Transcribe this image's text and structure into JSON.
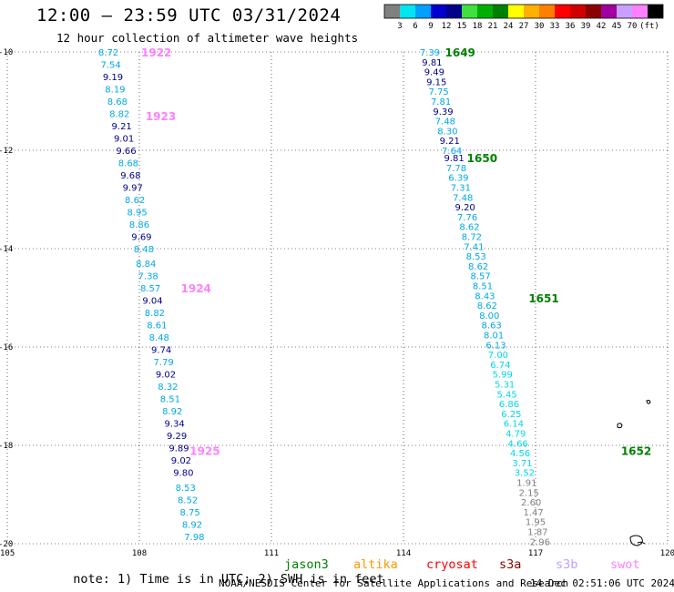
{
  "header": {
    "title": "12:00 — 23:59 UTC 03/31/2024",
    "subtitle": "12 hour collection of altimeter wave heights"
  },
  "colorbar": {
    "unit": "(ft)",
    "ticks": [
      "3",
      "6",
      "9",
      "12",
      "15",
      "18",
      "21",
      "24",
      "27",
      "30",
      "33",
      "36",
      "39",
      "42",
      "45",
      "70"
    ],
    "colors": [
      "#808080",
      "#00e5ee",
      "#00a0ff",
      "#0000d0",
      "#00008b",
      "#40e040",
      "#00b000",
      "#008000",
      "#ffff00",
      "#ffb000",
      "#ff8000",
      "#ff0000",
      "#d00000",
      "#8b0000",
      "#a000a0",
      "#c8a0ff",
      "#ff80ff",
      "#000000"
    ]
  },
  "footer": {
    "note_prefix": "note: 1) Time is in UTC; 2) SWH is in feet",
    "satellites": [
      {
        "name": "jason3",
        "color": "#008000"
      },
      {
        "name": "altika",
        "color": "#ff9900"
      },
      {
        "name": "cryosat",
        "color": "#ff0000"
      },
      {
        "name": "s3a",
        "color": "#8b0000"
      },
      {
        "name": "s3b",
        "color": "#c0a0ff"
      },
      {
        "name": "swot",
        "color": "#ff80ff"
      }
    ],
    "credit": "NOAA/NESDIS Center for Satellite Applications and Research",
    "timestamp": "14 Dec 02:51:06 UTC 2024"
  },
  "chart_data": {
    "type": "scatter",
    "xlim": [
      105,
      120
    ],
    "ylim": [
      -20,
      -10
    ],
    "x_ticks": [
      "105",
      "108",
      "111",
      "114",
      "117",
      "120"
    ],
    "y_ticks": [
      "-10",
      "-12",
      "-14",
      "-16",
      "-18",
      "-20"
    ],
    "grid": "dotted",
    "swh_colors": {
      "light_blue": "#00a8e8",
      "dark_blue": "#00008b",
      "cyan": "#00d8e8",
      "gray": "#808080"
    },
    "track_west": {
      "satellite": "swot",
      "color": "#ff80ff",
      "time_labels": [
        {
          "label": "1922",
          "lon": 108.0,
          "lat": -10.0
        },
        {
          "label": "1923",
          "lon": 108.1,
          "lat": -11.3
        },
        {
          "label": "1924",
          "lon": 108.9,
          "lat": -14.8
        },
        {
          "label": "1925",
          "lon": 109.1,
          "lat": -18.1
        }
      ],
      "points": [
        {
          "lon": 107.3,
          "lat": -10.0,
          "v": "8.72",
          "c": "light_blue"
        },
        {
          "lon": 107.35,
          "lat": -10.25,
          "v": "7.54",
          "c": "light_blue"
        },
        {
          "lon": 107.4,
          "lat": -10.5,
          "v": "9.19",
          "c": "dark_blue"
        },
        {
          "lon": 107.45,
          "lat": -10.75,
          "v": "8.19",
          "c": "light_blue"
        },
        {
          "lon": 107.5,
          "lat": -11.0,
          "v": "8.68",
          "c": "light_blue"
        },
        {
          "lon": 107.55,
          "lat": -11.25,
          "v": "8.82",
          "c": "light_blue"
        },
        {
          "lon": 107.6,
          "lat": -11.5,
          "v": "9.21",
          "c": "dark_blue"
        },
        {
          "lon": 107.65,
          "lat": -11.75,
          "v": "9.01",
          "c": "dark_blue"
        },
        {
          "lon": 107.7,
          "lat": -12.0,
          "v": "9.66",
          "c": "dark_blue"
        },
        {
          "lon": 107.75,
          "lat": -12.25,
          "v": "8.68",
          "c": "light_blue"
        },
        {
          "lon": 107.8,
          "lat": -12.5,
          "v": "9.68",
          "c": "dark_blue"
        },
        {
          "lon": 107.85,
          "lat": -12.75,
          "v": "9.97",
          "c": "dark_blue"
        },
        {
          "lon": 107.9,
          "lat": -13.0,
          "v": "8.62",
          "c": "light_blue"
        },
        {
          "lon": 107.95,
          "lat": -13.25,
          "v": "8.95",
          "c": "light_blue"
        },
        {
          "lon": 108.0,
          "lat": -13.5,
          "v": "8.86",
          "c": "light_blue"
        },
        {
          "lon": 108.05,
          "lat": -13.75,
          "v": "9.69",
          "c": "dark_blue"
        },
        {
          "lon": 108.1,
          "lat": -14.0,
          "v": "8.48",
          "c": "light_blue"
        },
        {
          "lon": 108.15,
          "lat": -14.3,
          "v": "8.84",
          "c": "light_blue"
        },
        {
          "lon": 108.2,
          "lat": -14.55,
          "v": "7.38",
          "c": "light_blue"
        },
        {
          "lon": 108.25,
          "lat": -14.8,
          "v": "8.57",
          "c": "light_blue"
        },
        {
          "lon": 108.3,
          "lat": -15.05,
          "v": "9.04",
          "c": "dark_blue"
        },
        {
          "lon": 108.35,
          "lat": -15.3,
          "v": "8.82",
          "c": "light_blue"
        },
        {
          "lon": 108.4,
          "lat": -15.55,
          "v": "8.61",
          "c": "light_blue"
        },
        {
          "lon": 108.45,
          "lat": -15.8,
          "v": "8.48",
          "c": "light_blue"
        },
        {
          "lon": 108.5,
          "lat": -16.05,
          "v": "9.74",
          "c": "dark_blue"
        },
        {
          "lon": 108.55,
          "lat": -16.3,
          "v": "7.79",
          "c": "light_blue"
        },
        {
          "lon": 108.6,
          "lat": -16.55,
          "v": "9.02",
          "c": "dark_blue"
        },
        {
          "lon": 108.65,
          "lat": -16.8,
          "v": "8.32",
          "c": "light_blue"
        },
        {
          "lon": 108.7,
          "lat": -17.05,
          "v": "8.51",
          "c": "light_blue"
        },
        {
          "lon": 108.75,
          "lat": -17.3,
          "v": "8.92",
          "c": "light_blue"
        },
        {
          "lon": 108.8,
          "lat": -17.55,
          "v": "9.34",
          "c": "dark_blue"
        },
        {
          "lon": 108.85,
          "lat": -17.8,
          "v": "9.29",
          "c": "dark_blue"
        },
        {
          "lon": 108.9,
          "lat": -18.05,
          "v": "9.89",
          "c": "dark_blue"
        },
        {
          "lon": 108.95,
          "lat": -18.3,
          "v": "9.02",
          "c": "dark_blue"
        },
        {
          "lon": 109.0,
          "lat": -18.55,
          "v": "9.80",
          "c": "dark_blue"
        },
        {
          "lon": 109.05,
          "lat": -18.85,
          "v": "8.53",
          "c": "light_blue"
        },
        {
          "lon": 109.1,
          "lat": -19.1,
          "v": "8.52",
          "c": "light_blue"
        },
        {
          "lon": 109.15,
          "lat": -19.35,
          "v": "8.75",
          "c": "light_blue"
        },
        {
          "lon": 109.2,
          "lat": -19.6,
          "v": "8.92",
          "c": "light_blue"
        },
        {
          "lon": 109.25,
          "lat": -19.85,
          "v": "7.98",
          "c": "light_blue"
        }
      ]
    },
    "track_east": {
      "satellite": "jason3",
      "color": "#008000",
      "time_labels": [
        {
          "label": "1649",
          "lon": 114.9,
          "lat": -10.0
        },
        {
          "label": "1650",
          "lon": 115.4,
          "lat": -12.15
        },
        {
          "label": "1651",
          "lon": 116.8,
          "lat": -15.0
        },
        {
          "label": "1652",
          "lon": 118.9,
          "lat": -18.1
        }
      ],
      "points": [
        {
          "lon": 114.6,
          "lat": -10.0,
          "v": "7.39",
          "c": "light_blue"
        },
        {
          "lon": 114.65,
          "lat": -10.2,
          "v": "9.81",
          "c": "dark_blue"
        },
        {
          "lon": 114.7,
          "lat": -10.4,
          "v": "9.49",
          "c": "dark_blue"
        },
        {
          "lon": 114.75,
          "lat": -10.6,
          "v": "9.15",
          "c": "dark_blue"
        },
        {
          "lon": 114.8,
          "lat": -10.8,
          "v": "7.75",
          "c": "light_blue"
        },
        {
          "lon": 114.85,
          "lat": -11.0,
          "v": "7.81",
          "c": "light_blue"
        },
        {
          "lon": 114.9,
          "lat": -11.2,
          "v": "9.39",
          "c": "dark_blue"
        },
        {
          "lon": 114.95,
          "lat": -11.4,
          "v": "7.48",
          "c": "light_blue"
        },
        {
          "lon": 115.0,
          "lat": -11.6,
          "v": "8.30",
          "c": "light_blue"
        },
        {
          "lon": 115.05,
          "lat": -11.8,
          "v": "9.21",
          "c": "dark_blue"
        },
        {
          "lon": 115.1,
          "lat": -12.0,
          "v": "7.64",
          "c": "light_blue"
        },
        {
          "lon": 115.15,
          "lat": -12.15,
          "v": "9.81",
          "c": "dark_blue"
        },
        {
          "lon": 115.2,
          "lat": -12.35,
          "v": "7.78",
          "c": "light_blue"
        },
        {
          "lon": 115.25,
          "lat": -12.55,
          "v": "6.39",
          "c": "light_blue"
        },
        {
          "lon": 115.3,
          "lat": -12.75,
          "v": "7.31",
          "c": "light_blue"
        },
        {
          "lon": 115.35,
          "lat": -12.95,
          "v": "7.48",
          "c": "light_blue"
        },
        {
          "lon": 115.4,
          "lat": -13.15,
          "v": "9.20",
          "c": "dark_blue"
        },
        {
          "lon": 115.45,
          "lat": -13.35,
          "v": "7.76",
          "c": "light_blue"
        },
        {
          "lon": 115.5,
          "lat": -13.55,
          "v": "8.62",
          "c": "light_blue"
        },
        {
          "lon": 115.55,
          "lat": -13.75,
          "v": "8.72",
          "c": "light_blue"
        },
        {
          "lon": 115.6,
          "lat": -13.95,
          "v": "7.41",
          "c": "light_blue"
        },
        {
          "lon": 115.65,
          "lat": -14.15,
          "v": "8.53",
          "c": "light_blue"
        },
        {
          "lon": 115.7,
          "lat": -14.35,
          "v": "8.62",
          "c": "light_blue"
        },
        {
          "lon": 115.75,
          "lat": -14.55,
          "v": "8.57",
          "c": "light_blue"
        },
        {
          "lon": 115.8,
          "lat": -14.75,
          "v": "8.51",
          "c": "light_blue"
        },
        {
          "lon": 115.85,
          "lat": -14.95,
          "v": "8.43",
          "c": "light_blue"
        },
        {
          "lon": 115.9,
          "lat": -15.15,
          "v": "8.62",
          "c": "light_blue"
        },
        {
          "lon": 115.95,
          "lat": -15.35,
          "v": "8.00",
          "c": "light_blue"
        },
        {
          "lon": 116.0,
          "lat": -15.55,
          "v": "8.63",
          "c": "light_blue"
        },
        {
          "lon": 116.05,
          "lat": -15.75,
          "v": "8.01",
          "c": "light_blue"
        },
        {
          "lon": 116.1,
          "lat": -15.95,
          "v": "6.13",
          "c": "light_blue"
        },
        {
          "lon": 116.15,
          "lat": -16.15,
          "v": "7.00",
          "c": "cyan"
        },
        {
          "lon": 116.2,
          "lat": -16.35,
          "v": "6.74",
          "c": "cyan"
        },
        {
          "lon": 116.25,
          "lat": -16.55,
          "v": "5.99",
          "c": "cyan"
        },
        {
          "lon": 116.3,
          "lat": -16.75,
          "v": "5.31",
          "c": "cyan"
        },
        {
          "lon": 116.35,
          "lat": -16.95,
          "v": "5.45",
          "c": "cyan"
        },
        {
          "lon": 116.4,
          "lat": -17.15,
          "v": "6.86",
          "c": "cyan"
        },
        {
          "lon": 116.45,
          "lat": -17.35,
          "v": "6.25",
          "c": "cyan"
        },
        {
          "lon": 116.5,
          "lat": -17.55,
          "v": "6.14",
          "c": "cyan"
        },
        {
          "lon": 116.55,
          "lat": -17.75,
          "v": "4.79",
          "c": "cyan"
        },
        {
          "lon": 116.6,
          "lat": -17.95,
          "v": "4.66",
          "c": "cyan"
        },
        {
          "lon": 116.65,
          "lat": -18.15,
          "v": "4.56",
          "c": "cyan"
        },
        {
          "lon": 116.7,
          "lat": -18.35,
          "v": "3.71",
          "c": "cyan"
        },
        {
          "lon": 116.75,
          "lat": -18.55,
          "v": "3.52",
          "c": "cyan"
        },
        {
          "lon": 116.8,
          "lat": -18.75,
          "v": "1.91",
          "c": "gray"
        },
        {
          "lon": 116.85,
          "lat": -18.95,
          "v": "2.15",
          "c": "gray"
        },
        {
          "lon": 116.9,
          "lat": -19.15,
          "v": "2.60",
          "c": "gray"
        },
        {
          "lon": 116.95,
          "lat": -19.35,
          "v": "1.47",
          "c": "gray"
        },
        {
          "lon": 117.0,
          "lat": -19.55,
          "v": "1.95",
          "c": "gray"
        },
        {
          "lon": 117.05,
          "lat": -19.75,
          "v": "1.87",
          "c": "gray"
        },
        {
          "lon": 117.1,
          "lat": -19.95,
          "v": "2.96",
          "c": "gray"
        }
      ]
    }
  }
}
